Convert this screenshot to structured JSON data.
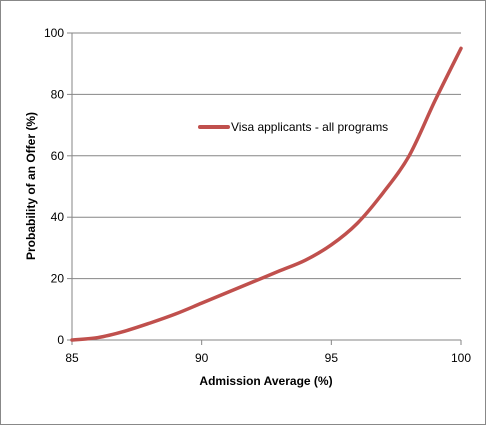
{
  "chart_data": {
    "type": "line",
    "title": "",
    "xlabel": "Admission Average (%)",
    "ylabel": "Probability of an Offer (%)",
    "xlim": [
      85,
      100
    ],
    "ylim": [
      0,
      100
    ],
    "x_ticks": [
      85,
      90,
      95,
      100
    ],
    "y_ticks": [
      0,
      20,
      40,
      60,
      80,
      100
    ],
    "grid": "horizontal",
    "legend_position": "upper-center",
    "series": [
      {
        "name": "Visa applicants - all programs",
        "color": "#C0504D",
        "x": [
          85,
          86,
          87,
          88,
          89,
          90,
          91,
          92,
          93,
          94,
          95,
          96,
          97,
          98,
          99,
          100
        ],
        "y": [
          0,
          0.8,
          2.8,
          5.5,
          8.5,
          12,
          15.5,
          19,
          22.5,
          26,
          31,
          38,
          48,
          60,
          78,
          95
        ]
      }
    ]
  }
}
